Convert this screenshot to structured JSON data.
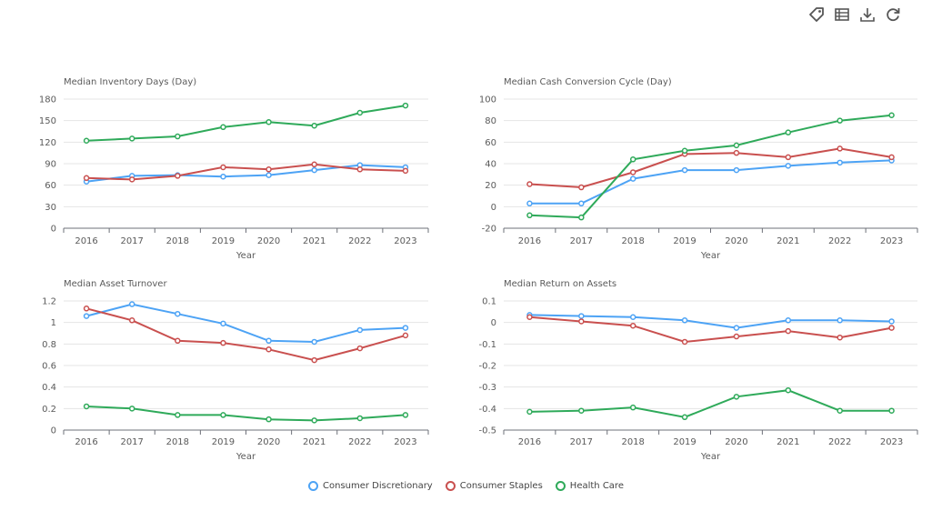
{
  "toolbar": [
    {
      "name": "tag-icon"
    },
    {
      "name": "table-icon"
    },
    {
      "name": "download-icon"
    },
    {
      "name": "refresh-icon"
    }
  ],
  "legend": [
    {
      "label": "Consumer Discretionary",
      "color": "#4da3f5"
    },
    {
      "label": "Consumer Staples",
      "color": "#c9504f"
    },
    {
      "label": "Health Care",
      "color": "#2faa5a"
    }
  ],
  "chart_data": [
    {
      "type": "line",
      "title": "Median Inventory Days (Day)",
      "xlabel": "Year",
      "categories": [
        "2016",
        "2017",
        "2018",
        "2019",
        "2020",
        "2021",
        "2022",
        "2023"
      ],
      "ylim": [
        0,
        180
      ],
      "yticks": [
        "0",
        "30",
        "60",
        "90",
        "120",
        "150",
        "180"
      ],
      "series": [
        {
          "name": "Consumer Discretionary",
          "color": "#4da3f5",
          "values": [
            65,
            73,
            74,
            72,
            74,
            81,
            88,
            85
          ]
        },
        {
          "name": "Consumer Staples",
          "color": "#c9504f",
          "values": [
            70,
            68,
            73,
            85,
            82,
            89,
            82,
            80
          ]
        },
        {
          "name": "Health Care",
          "color": "#2faa5a",
          "values": [
            122,
            125,
            128,
            141,
            148,
            143,
            161,
            171
          ]
        }
      ]
    },
    {
      "type": "line",
      "title": "Median Cash Conversion Cycle (Day)",
      "xlabel": "Year",
      "categories": [
        "2016",
        "2017",
        "2018",
        "2019",
        "2020",
        "2021",
        "2022",
        "2023"
      ],
      "ylim": [
        -20,
        100
      ],
      "yticks": [
        "-20",
        "0",
        "20",
        "40",
        "60",
        "80",
        "100"
      ],
      "series": [
        {
          "name": "Consumer Discretionary",
          "color": "#4da3f5",
          "values": [
            3,
            3,
            26,
            34,
            34,
            38,
            41,
            43
          ]
        },
        {
          "name": "Consumer Staples",
          "color": "#c9504f",
          "values": [
            21,
            18,
            32,
            49,
            50,
            46,
            54,
            46
          ]
        },
        {
          "name": "Health Care",
          "color": "#2faa5a",
          "values": [
            -8,
            -10,
            44,
            52,
            57,
            69,
            80,
            85
          ]
        }
      ]
    },
    {
      "type": "line",
      "title": "Median Asset Turnover",
      "xlabel": "Year",
      "categories": [
        "2016",
        "2017",
        "2018",
        "2019",
        "2020",
        "2021",
        "2022",
        "2023"
      ],
      "ylim": [
        0,
        1.2
      ],
      "yticks": [
        "0",
        "0.2",
        "0.4",
        "0.6",
        "0.8",
        "1",
        "1.2"
      ],
      "series": [
        {
          "name": "Consumer Discretionary",
          "color": "#4da3f5",
          "values": [
            1.06,
            1.17,
            1.08,
            0.99,
            0.83,
            0.82,
            0.93,
            0.95
          ]
        },
        {
          "name": "Consumer Staples",
          "color": "#c9504f",
          "values": [
            1.13,
            1.02,
            0.83,
            0.81,
            0.75,
            0.65,
            0.76,
            0.88
          ]
        },
        {
          "name": "Health Care",
          "color": "#2faa5a",
          "values": [
            0.22,
            0.2,
            0.14,
            0.14,
            0.1,
            0.09,
            0.11,
            0.14
          ]
        }
      ]
    },
    {
      "type": "line",
      "title": "Median Return on Assets",
      "xlabel": "Year",
      "categories": [
        "2016",
        "2017",
        "2018",
        "2019",
        "2020",
        "2021",
        "2022",
        "2023"
      ],
      "ylim": [
        -0.5,
        0.1
      ],
      "yticks": [
        "-0.5",
        "-0.4",
        "-0.3",
        "-0.2",
        "-0.1",
        "0",
        "0.1"
      ],
      "series": [
        {
          "name": "Consumer Discretionary",
          "color": "#4da3f5",
          "values": [
            0.035,
            0.03,
            0.025,
            0.01,
            -0.025,
            0.01,
            0.01,
            0.005
          ]
        },
        {
          "name": "Consumer Staples",
          "color": "#c9504f",
          "values": [
            0.025,
            0.005,
            -0.015,
            -0.09,
            -0.065,
            -0.04,
            -0.07,
            -0.025
          ]
        },
        {
          "name": "Health Care",
          "color": "#2faa5a",
          "values": [
            -0.415,
            -0.41,
            -0.395,
            -0.44,
            -0.345,
            -0.315,
            -0.41,
            -0.41
          ]
        }
      ]
    }
  ]
}
